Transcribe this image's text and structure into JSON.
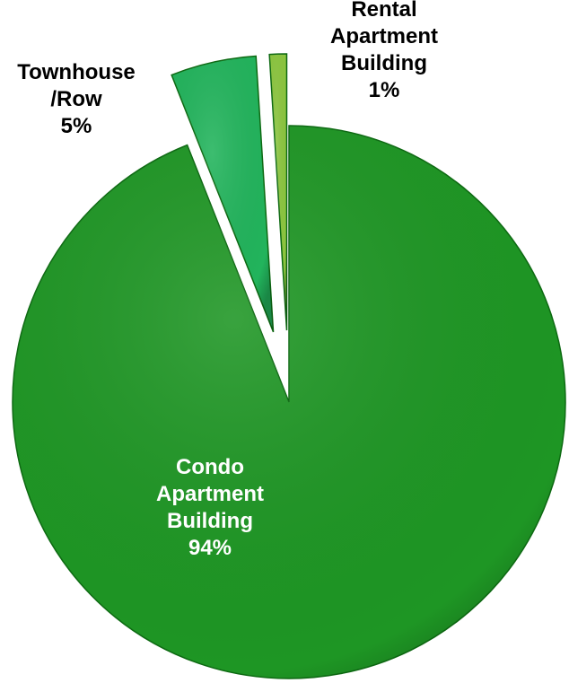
{
  "chart_data": {
    "type": "pie",
    "categories": [
      "Condo Apartment Building",
      "Townhouse /Row",
      "Rental Apartment Building"
    ],
    "values": [
      94,
      5,
      1
    ],
    "value_labels": [
      "94%",
      "5%",
      "1%"
    ],
    "colors": [
      "#1e9624",
      "#22b45c",
      "#8cc63f"
    ],
    "label_colors": [
      "#ffffff",
      "#000000",
      "#000000"
    ]
  }
}
